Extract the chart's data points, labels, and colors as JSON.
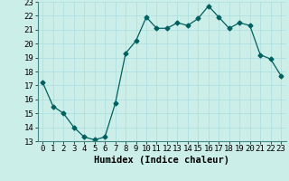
{
  "x": [
    0,
    1,
    2,
    3,
    4,
    5,
    6,
    7,
    8,
    9,
    10,
    11,
    12,
    13,
    14,
    15,
    16,
    17,
    18,
    19,
    20,
    21,
    22,
    23
  ],
  "y": [
    17.2,
    15.5,
    15.0,
    14.0,
    13.3,
    13.1,
    13.3,
    15.7,
    19.3,
    20.2,
    21.9,
    21.1,
    21.1,
    21.5,
    21.3,
    21.8,
    22.7,
    21.9,
    21.1,
    21.5,
    21.3,
    19.2,
    18.9,
    17.7
  ],
  "line_color": "#006060",
  "marker": "D",
  "marker_size": 2.5,
  "bg_color": "#cceee8",
  "grid_color": "#aadddd",
  "xlabel": "Humidex (Indice chaleur)",
  "ylim": [
    13,
    23
  ],
  "xlim": [
    -0.5,
    23.5
  ],
  "yticks": [
    13,
    14,
    15,
    16,
    17,
    18,
    19,
    20,
    21,
    22,
    23
  ],
  "xticks": [
    0,
    1,
    2,
    3,
    4,
    5,
    6,
    7,
    8,
    9,
    10,
    11,
    12,
    13,
    14,
    15,
    16,
    17,
    18,
    19,
    20,
    21,
    22,
    23
  ],
  "xlabel_fontsize": 7.5,
  "tick_fontsize": 6.5
}
